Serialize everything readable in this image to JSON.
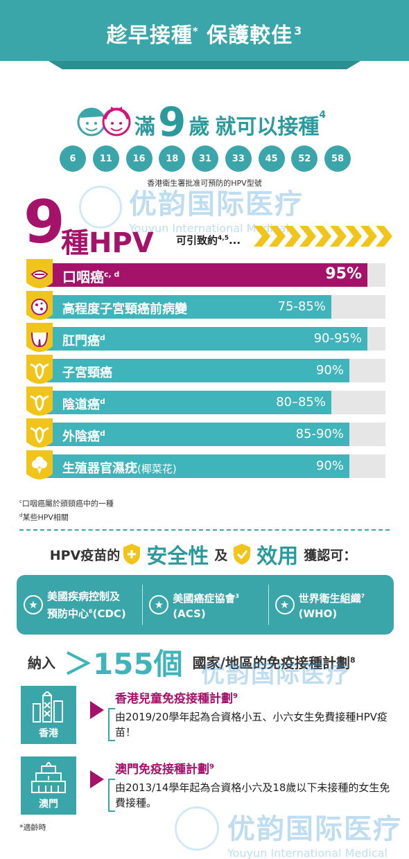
{
  "header": {
    "title_main": "趁早接種",
    "title_mark": "*",
    "title_rest": "保護較佳",
    "title_ref": "3"
  },
  "age": {
    "prefix": "滿",
    "number": "9",
    "unit": "歲",
    "suffix": "就可以接種",
    "ref": "4"
  },
  "hpv_types": {
    "items": [
      "6",
      "11",
      "16",
      "18",
      "31",
      "33",
      "45",
      "52",
      "58"
    ],
    "caption": "香港衛生署批准可預防的HPV型號"
  },
  "watermark": {
    "cn": "优韵国际医疗",
    "en": "Youyun International Medical"
  },
  "diseases": {
    "big_number": "9",
    "title": "種HPV",
    "subtitle": "可引致約",
    "subtitle_ref": "4,5",
    "subtitle_end": "...",
    "items": [
      {
        "label": "口咽癌",
        "ref": "c, d",
        "paren": "",
        "pct": "95%",
        "value": 95,
        "icon": "mouth-icon"
      },
      {
        "label": "高程度子宮頸癌前病變",
        "ref": "",
        "paren": "",
        "pct": "75-85%",
        "value": 85,
        "icon": "cell-icon"
      },
      {
        "label": "肛門癌",
        "ref": "d",
        "paren": "",
        "pct": "90-95%",
        "value": 95,
        "icon": "buttocks-icon"
      },
      {
        "label": "子宮頸癌",
        "ref": "",
        "paren": "",
        "pct": "90%",
        "value": 90,
        "icon": "uterus-icon"
      },
      {
        "label": "陰道癌",
        "ref": "d",
        "paren": "",
        "pct": "80–85%",
        "value": 85,
        "icon": "uterus-icon"
      },
      {
        "label": "外陰癌",
        "ref": "d",
        "paren": "",
        "pct": "85-90%",
        "value": 90,
        "icon": "uterus-icon"
      },
      {
        "label": "生殖器官濕疣",
        "ref": "",
        "paren": "(椰菜花)",
        "pct": "90%",
        "value": 90,
        "icon": "cauliflower-icon"
      }
    ],
    "footnote_c_mark": "c",
    "footnote_c": "口咽癌屬於頭頸癌中的一種",
    "footnote_d_mark": "d",
    "footnote_d": "某些HPV相關"
  },
  "safety": {
    "prefix": "HPV疫苗的",
    "safety_word": "安全性",
    "and": "及",
    "efficacy_word": "效用",
    "suffix": "獲認可："
  },
  "orgs": [
    {
      "line1": "美國疾病控制及",
      "line2": "預防中心",
      "ref": "6",
      "line2_end": "(CDC)",
      "ref_pos": "line2"
    },
    {
      "line1": "美國癌症協會",
      "line2": "",
      "ref": "3",
      "line2_end": "(ACS)",
      "ref_pos": "line1"
    },
    {
      "line1": "世界衛生組織",
      "line2": "",
      "ref": "7",
      "line2_end": "(WHO)",
      "ref_pos": "line1"
    }
  ],
  "countries": {
    "prefix": "納入",
    "count": "＞155個",
    "suffix": "國家/地區的免疫接種計劃",
    "ref": "8"
  },
  "programs": [
    {
      "city": "香港",
      "title": "香港兒童免疫接種計劃",
      "ref": "9",
      "text": "由2019/20學年起為合資格小五、小六女生免費接種HPV疫苗！"
    },
    {
      "city": "澳門",
      "title": "澳門免疫接種計劃",
      "ref": "9",
      "text": "由2013/14學年起為合資格小六及18歲以下未接種的女生免費接種。"
    }
  ],
  "note": "*適齡時",
  "colors": {
    "teal": "#3aa6a9",
    "magenta": "#a4126a",
    "yellow": "#f0c419",
    "track": "#e6e6e6"
  }
}
